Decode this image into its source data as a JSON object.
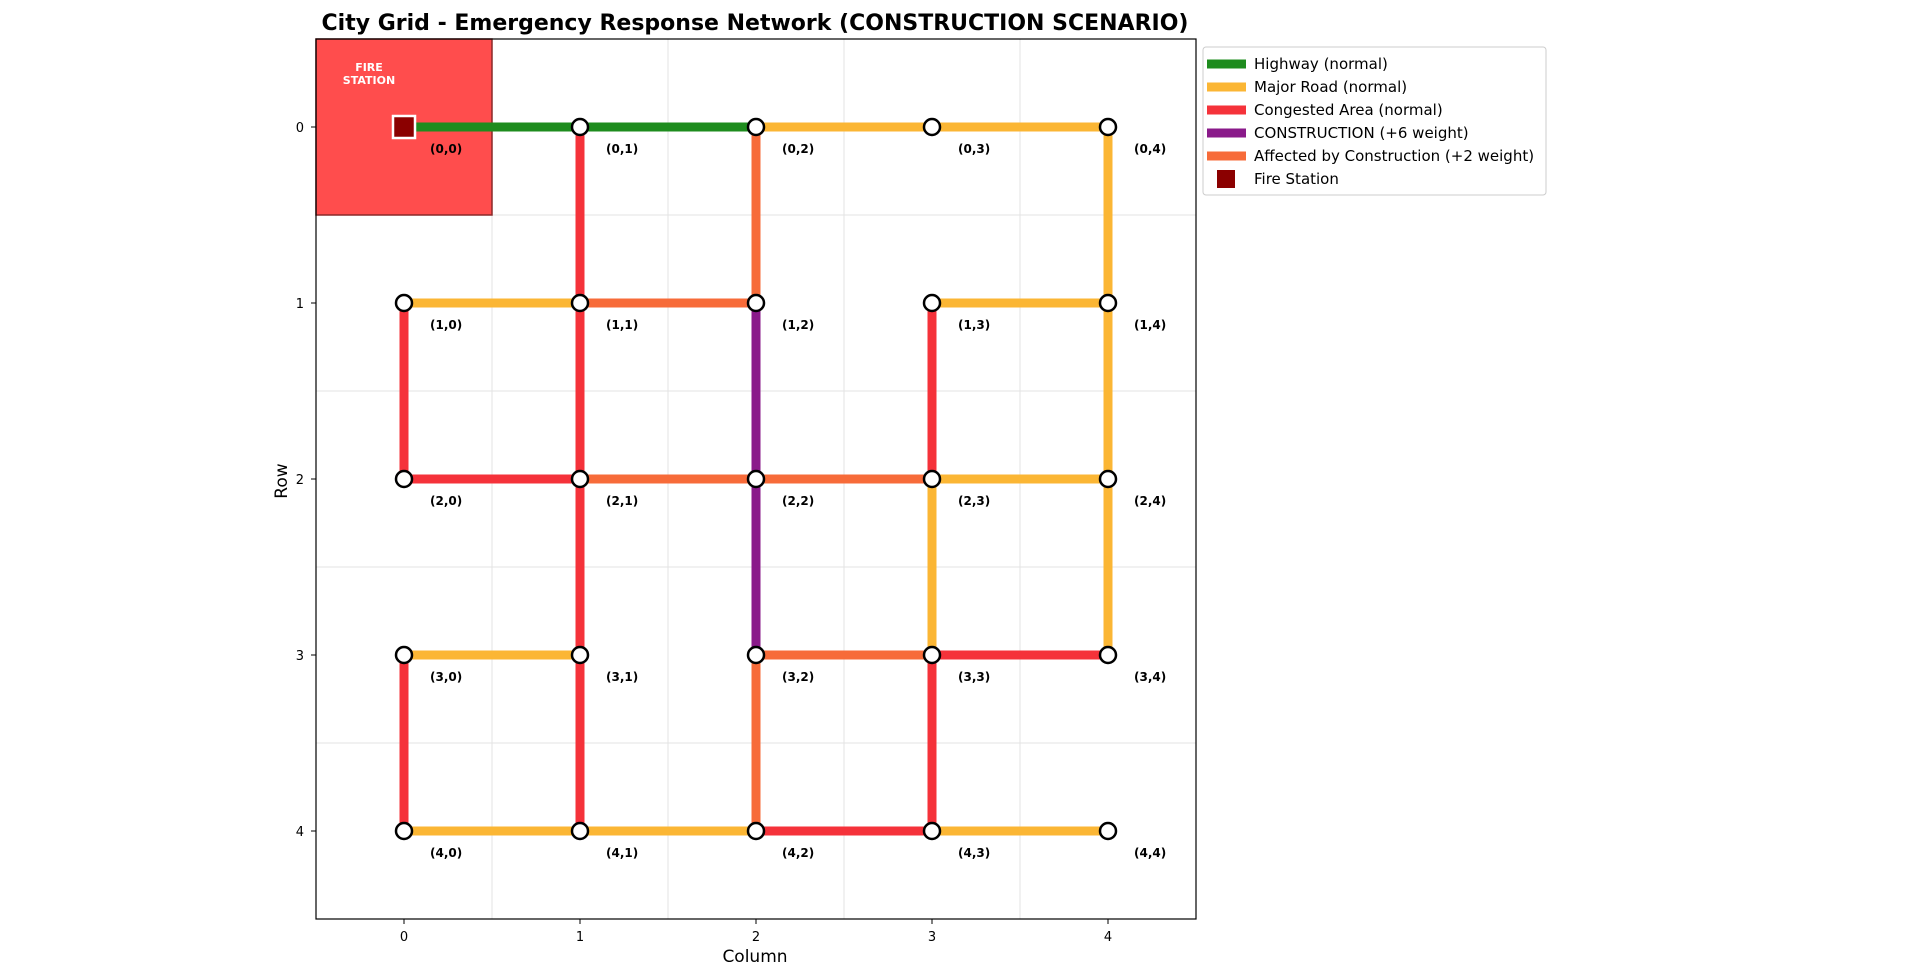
{
  "chart_data": {
    "type": "network",
    "title": "City Grid - Emergency Response Network (CONSTRUCTION SCENARIO)",
    "xlabel": "Column",
    "ylabel": "Row",
    "xlim": [
      -0.5,
      4.5
    ],
    "ylim": [
      4.5,
      -0.5
    ],
    "x_ticks": [
      0,
      1,
      2,
      3,
      4
    ],
    "y_ticks": [
      0,
      1,
      2,
      3,
      4
    ],
    "grid": true,
    "legend_position": "outside-right-top",
    "fire_station": {
      "row": 0,
      "col": 0,
      "label_line1": "FIRE",
      "label_line2": "STATION",
      "zone_color": "#ff4d4d",
      "marker_color": "#8b0000"
    },
    "road_types": {
      "highway": {
        "label": "Highway (normal)",
        "color": "#1e8c1e"
      },
      "major": {
        "label": "Major Road (normal)",
        "color": "#fbb634"
      },
      "congested": {
        "label": "Congested Area (normal)",
        "color": "#f5323a"
      },
      "construction": {
        "label": "CONSTRUCTION (+6 weight)",
        "color": "#8a1a8a"
      },
      "affected": {
        "label": "Affected by Construction (+2 weight)",
        "color": "#f76b39"
      }
    },
    "legend": [
      {
        "type": "highway",
        "label": "Highway (normal)"
      },
      {
        "type": "major",
        "label": "Major Road (normal)"
      },
      {
        "type": "congested",
        "label": "Congested Area (normal)"
      },
      {
        "type": "construction",
        "label": "CONSTRUCTION (+6 weight)"
      },
      {
        "type": "affected",
        "label": "Affected by Construction (+2 weight)"
      },
      {
        "type": "station",
        "label": "Fire Station"
      }
    ],
    "nodes": [
      {
        "row": 0,
        "col": 0,
        "label": "(0,0)"
      },
      {
        "row": 0,
        "col": 1,
        "label": "(0,1)"
      },
      {
        "row": 0,
        "col": 2,
        "label": "(0,2)"
      },
      {
        "row": 0,
        "col": 3,
        "label": "(0,3)"
      },
      {
        "row": 0,
        "col": 4,
        "label": "(0,4)"
      },
      {
        "row": 1,
        "col": 0,
        "label": "(1,0)"
      },
      {
        "row": 1,
        "col": 1,
        "label": "(1,1)"
      },
      {
        "row": 1,
        "col": 2,
        "label": "(1,2)"
      },
      {
        "row": 1,
        "col": 3,
        "label": "(1,3)"
      },
      {
        "row": 1,
        "col": 4,
        "label": "(1,4)"
      },
      {
        "row": 2,
        "col": 0,
        "label": "(2,0)"
      },
      {
        "row": 2,
        "col": 1,
        "label": "(2,1)"
      },
      {
        "row": 2,
        "col": 2,
        "label": "(2,2)"
      },
      {
        "row": 2,
        "col": 3,
        "label": "(2,3)"
      },
      {
        "row": 2,
        "col": 4,
        "label": "(2,4)"
      },
      {
        "row": 3,
        "col": 0,
        "label": "(3,0)"
      },
      {
        "row": 3,
        "col": 1,
        "label": "(3,1)"
      },
      {
        "row": 3,
        "col": 2,
        "label": "(3,2)"
      },
      {
        "row": 3,
        "col": 3,
        "label": "(3,3)"
      },
      {
        "row": 3,
        "col": 4,
        "label": "(3,4)"
      },
      {
        "row": 4,
        "col": 0,
        "label": "(4,0)"
      },
      {
        "row": 4,
        "col": 1,
        "label": "(4,1)"
      },
      {
        "row": 4,
        "col": 2,
        "label": "(4,2)"
      },
      {
        "row": 4,
        "col": 3,
        "label": "(4,3)"
      },
      {
        "row": 4,
        "col": 4,
        "label": "(4,4)"
      }
    ],
    "edges": [
      {
        "from": [
          0,
          0
        ],
        "to": [
          0,
          1
        ],
        "type": "highway"
      },
      {
        "from": [
          0,
          1
        ],
        "to": [
          0,
          2
        ],
        "type": "highway"
      },
      {
        "from": [
          0,
          2
        ],
        "to": [
          0,
          3
        ],
        "type": "major"
      },
      {
        "from": [
          0,
          3
        ],
        "to": [
          0,
          4
        ],
        "type": "major"
      },
      {
        "from": [
          0,
          4
        ],
        "to": [
          1,
          4
        ],
        "type": "major"
      },
      {
        "from": [
          0,
          1
        ],
        "to": [
          1,
          1
        ],
        "type": "congested"
      },
      {
        "from": [
          0,
          2
        ],
        "to": [
          1,
          2
        ],
        "type": "affected"
      },
      {
        "from": [
          1,
          0
        ],
        "to": [
          1,
          1
        ],
        "type": "major"
      },
      {
        "from": [
          1,
          1
        ],
        "to": [
          1,
          2
        ],
        "type": "affected"
      },
      {
        "from": [
          1,
          3
        ],
        "to": [
          1,
          4
        ],
        "type": "major"
      },
      {
        "from": [
          1,
          0
        ],
        "to": [
          2,
          0
        ],
        "type": "congested"
      },
      {
        "from": [
          1,
          1
        ],
        "to": [
          2,
          1
        ],
        "type": "congested"
      },
      {
        "from": [
          1,
          2
        ],
        "to": [
          2,
          2
        ],
        "type": "construction"
      },
      {
        "from": [
          1,
          3
        ],
        "to": [
          2,
          3
        ],
        "type": "congested"
      },
      {
        "from": [
          1,
          4
        ],
        "to": [
          2,
          4
        ],
        "type": "major"
      },
      {
        "from": [
          2,
          0
        ],
        "to": [
          2,
          1
        ],
        "type": "congested"
      },
      {
        "from": [
          2,
          1
        ],
        "to": [
          2,
          2
        ],
        "type": "affected"
      },
      {
        "from": [
          2,
          2
        ],
        "to": [
          2,
          3
        ],
        "type": "affected"
      },
      {
        "from": [
          2,
          3
        ],
        "to": [
          2,
          4
        ],
        "type": "major"
      },
      {
        "from": [
          2,
          1
        ],
        "to": [
          3,
          1
        ],
        "type": "congested"
      },
      {
        "from": [
          2,
          2
        ],
        "to": [
          3,
          2
        ],
        "type": "construction"
      },
      {
        "from": [
          2,
          3
        ],
        "to": [
          3,
          3
        ],
        "type": "major"
      },
      {
        "from": [
          2,
          4
        ],
        "to": [
          3,
          4
        ],
        "type": "major"
      },
      {
        "from": [
          3,
          0
        ],
        "to": [
          3,
          1
        ],
        "type": "major"
      },
      {
        "from": [
          3,
          2
        ],
        "to": [
          3,
          3
        ],
        "type": "affected"
      },
      {
        "from": [
          3,
          3
        ],
        "to": [
          3,
          4
        ],
        "type": "congested"
      },
      {
        "from": [
          3,
          0
        ],
        "to": [
          4,
          0
        ],
        "type": "congested"
      },
      {
        "from": [
          3,
          1
        ],
        "to": [
          4,
          1
        ],
        "type": "congested"
      },
      {
        "from": [
          3,
          2
        ],
        "to": [
          4,
          2
        ],
        "type": "affected"
      },
      {
        "from": [
          3,
          3
        ],
        "to": [
          4,
          3
        ],
        "type": "congested"
      },
      {
        "from": [
          4,
          0
        ],
        "to": [
          4,
          1
        ],
        "type": "major"
      },
      {
        "from": [
          4,
          1
        ],
        "to": [
          4,
          2
        ],
        "type": "major"
      },
      {
        "from": [
          4,
          2
        ],
        "to": [
          4,
          3
        ],
        "type": "congested"
      },
      {
        "from": [
          4,
          3
        ],
        "to": [
          4,
          4
        ],
        "type": "major"
      }
    ]
  }
}
